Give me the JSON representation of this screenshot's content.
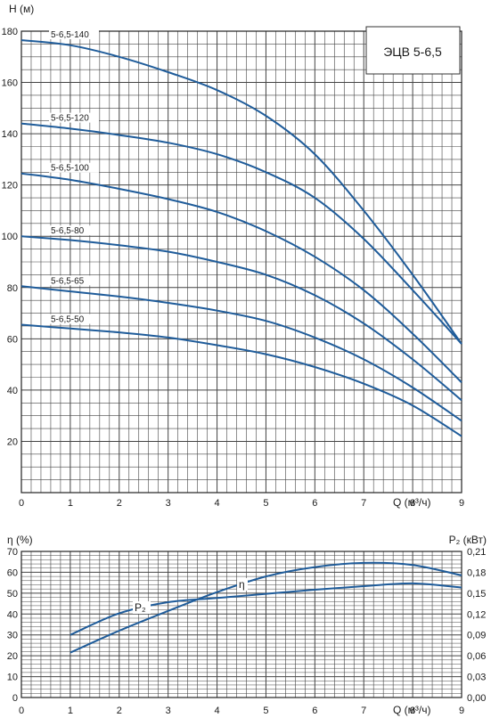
{
  "chart_data": [
    {
      "type": "line",
      "title": "ЭЦВ 5-6,5",
      "ylabel": "Н (м)",
      "xlabel": "Q (м³/ч)",
      "xlim": [
        0,
        9
      ],
      "ylim": [
        0,
        180
      ],
      "x_ticks": [
        "0",
        "1",
        "2",
        "3",
        "4",
        "5",
        "6",
        "7",
        "8",
        "9"
      ],
      "y_ticks": [
        "20",
        "40",
        "60",
        "80",
        "100",
        "120",
        "140",
        "160",
        "180"
      ],
      "grid": true,
      "series": [
        {
          "name": "5-6,5-140",
          "x": [
            0,
            1,
            2,
            3,
            4,
            5,
            6,
            7,
            8,
            9
          ],
          "y": [
            176.5,
            174.5,
            170,
            164,
            157,
            147,
            132,
            110,
            85,
            58
          ]
        },
        {
          "name": "5-6,5-120",
          "x": [
            0,
            1,
            2,
            3,
            4,
            5,
            6,
            7,
            8,
            9
          ],
          "y": [
            144,
            142,
            139.5,
            136.5,
            132,
            125,
            115,
            99,
            79,
            58
          ]
        },
        {
          "name": "5-6,5-100",
          "x": [
            0,
            1,
            2,
            3,
            4,
            5,
            6,
            7,
            8,
            9
          ],
          "y": [
            124.5,
            122,
            118.5,
            114.5,
            109.5,
            102,
            92,
            79,
            62,
            43
          ]
        },
        {
          "name": "5-6,5-80",
          "x": [
            0,
            1,
            2,
            3,
            4,
            5,
            6,
            7,
            8,
            9
          ],
          "y": [
            100,
            98.5,
            96.5,
            94,
            90,
            85,
            77,
            66,
            52,
            36
          ]
        },
        {
          "name": "5-6,5-65",
          "x": [
            0,
            1,
            2,
            3,
            4,
            5,
            6,
            7,
            8,
            9
          ],
          "y": [
            80.5,
            78.5,
            76.5,
            74,
            71,
            67,
            60.5,
            52,
            41,
            28
          ]
        },
        {
          "name": "5-6,5-50",
          "x": [
            0,
            1,
            2,
            3,
            4,
            5,
            6,
            7,
            8,
            9
          ],
          "y": [
            65.5,
            64,
            62.5,
            60.5,
            57.5,
            54,
            49,
            42.5,
            34,
            22
          ]
        }
      ]
    },
    {
      "type": "line",
      "ylabel": "η (%)",
      "ylabel_right": "P₂ (кВт)",
      "xlabel": "Q (м³/ч)",
      "xlim": [
        0,
        9
      ],
      "ylim": [
        0,
        70
      ],
      "ylim_right": [
        0,
        0.21
      ],
      "x_ticks": [
        "0",
        "1",
        "2",
        "3",
        "4",
        "5",
        "6",
        "7",
        "8",
        "9"
      ],
      "y_ticks": [
        "0",
        "10",
        "20",
        "30",
        "40",
        "50",
        "60",
        "70"
      ],
      "y_ticks_right": [
        "0,00",
        "0,03",
        "0,06",
        "0,09",
        "0,12",
        "0,15",
        "0,18",
        "0,21"
      ],
      "grid": true,
      "series": [
        {
          "name": "η",
          "axis": "left",
          "x": [
            1,
            2,
            3,
            4,
            5,
            6,
            7,
            8,
            9
          ],
          "y": [
            21.5,
            32,
            41.5,
            50.5,
            58,
            62.5,
            64.5,
            63.5,
            58.5
          ]
        },
        {
          "name": "P₂",
          "axis": "right",
          "x": [
            1,
            2,
            3,
            4,
            5,
            6,
            7,
            8,
            9
          ],
          "y": [
            0.09,
            0.121,
            0.137,
            0.143,
            0.149,
            0.155,
            0.16,
            0.164,
            0.158
          ]
        }
      ]
    }
  ]
}
